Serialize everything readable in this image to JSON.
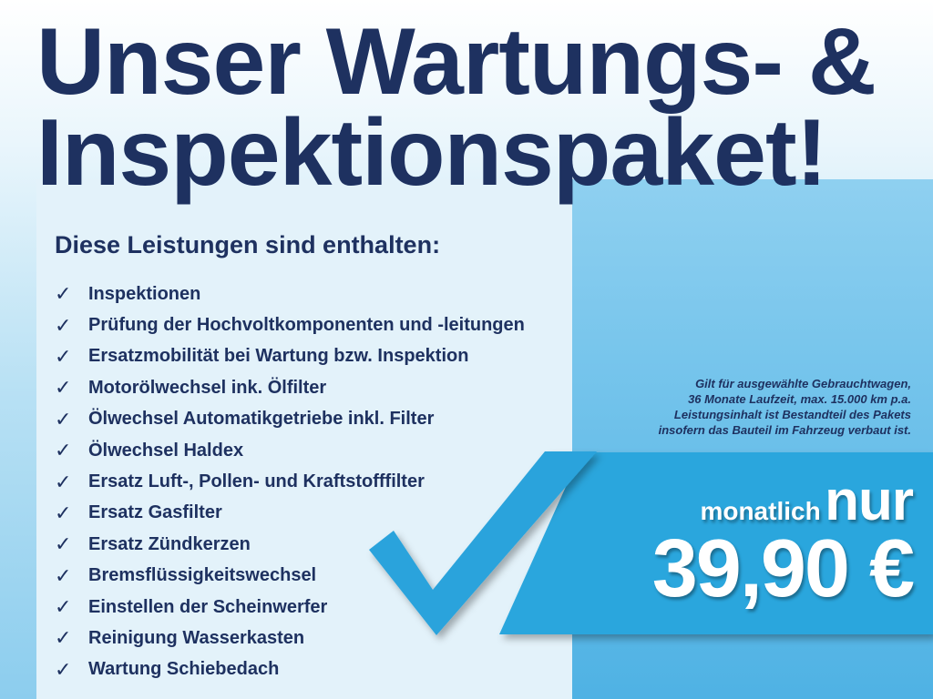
{
  "title": {
    "line1": "Unser Wartungs- &",
    "line2": "Inspektionspaket!"
  },
  "heading": "Diese Leistungen sind enthalten:",
  "check_glyph": "✓",
  "items": [
    "Inspektionen",
    "Prüfung der Hochvoltkomponenten und -leitungen",
    "Ersatzmobilität bei Wartung bzw. Inspektion",
    "Motorölwechsel ink. Ölfilter",
    "Ölwechsel Automatikgetriebe inkl. Filter",
    "Ölwechsel Haldex",
    "Ersatz Luft-, Pollen- und Kraftstofffilter",
    "Ersatz Gasfilter",
    "Ersatz Zündkerzen",
    "Bremsflüssigkeitswechsel",
    "Einstellen der Scheinwerfer",
    "Reinigung Wasserkasten",
    "Wartung Schiebedach"
  ],
  "note": [
    "Gilt für ausgewählte Gebrauchtwagen,",
    "36 Monate Laufzeit, max. 15.000 km p.a.",
    "Leistungsinhalt ist Bestandteil des Pakets",
    "insofern das Bauteil im Fahrzeug verbaut ist."
  ],
  "price": {
    "monthly": "monatlich",
    "only": "nur",
    "value": "39,90 €"
  },
  "colors": {
    "navy": "#1e3160",
    "accent": "#29a6dd",
    "panel": "#e3f2fa"
  }
}
